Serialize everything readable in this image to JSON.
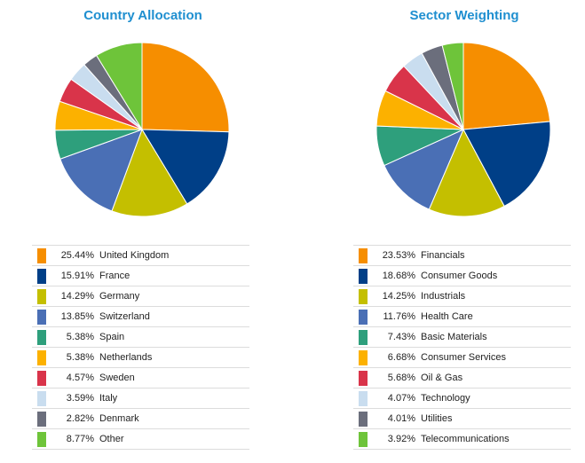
{
  "chart_data": [
    {
      "type": "pie",
      "title": "Country Allocation",
      "categories": [
        "United Kingdom",
        "France",
        "Germany",
        "Switzerland",
        "Spain",
        "Netherlands",
        "Sweden",
        "Italy",
        "Denmark",
        "Other"
      ],
      "values": [
        25.44,
        15.91,
        14.29,
        13.85,
        5.38,
        5.38,
        4.57,
        3.59,
        2.82,
        8.77
      ],
      "labels": [
        "25.44%",
        "15.91%",
        "14.29%",
        "13.85%",
        "5.38%",
        "5.38%",
        "4.57%",
        "3.59%",
        "2.82%",
        "8.77%"
      ],
      "colors": [
        "#f68e00",
        "#003f87",
        "#c4bf00",
        "#4a6fb5",
        "#2e9f7c",
        "#fcb100",
        "#d9344a",
        "#c9ddef",
        "#6b6e7c",
        "#6ec43a"
      ],
      "legend_position": "bottom"
    },
    {
      "type": "pie",
      "title": "Sector Weighting",
      "categories": [
        "Financials",
        "Consumer Goods",
        "Industrials",
        "Health Care",
        "Basic Materials",
        "Consumer Services",
        "Oil & Gas",
        "Technology",
        "Utilities",
        "Telecommunications"
      ],
      "values": [
        23.53,
        18.68,
        14.25,
        11.76,
        7.43,
        6.68,
        5.68,
        4.07,
        4.01,
        3.92
      ],
      "labels": [
        "23.53%",
        "18.68%",
        "14.25%",
        "11.76%",
        "7.43%",
        "6.68%",
        "5.68%",
        "4.07%",
        "4.01%",
        "3.92%"
      ],
      "colors": [
        "#f68e00",
        "#003f87",
        "#c4bf00",
        "#4a6fb5",
        "#2e9f7c",
        "#fcb100",
        "#d9344a",
        "#c9ddef",
        "#6b6e7c",
        "#6ec43a"
      ],
      "legend_position": "bottom"
    }
  ]
}
